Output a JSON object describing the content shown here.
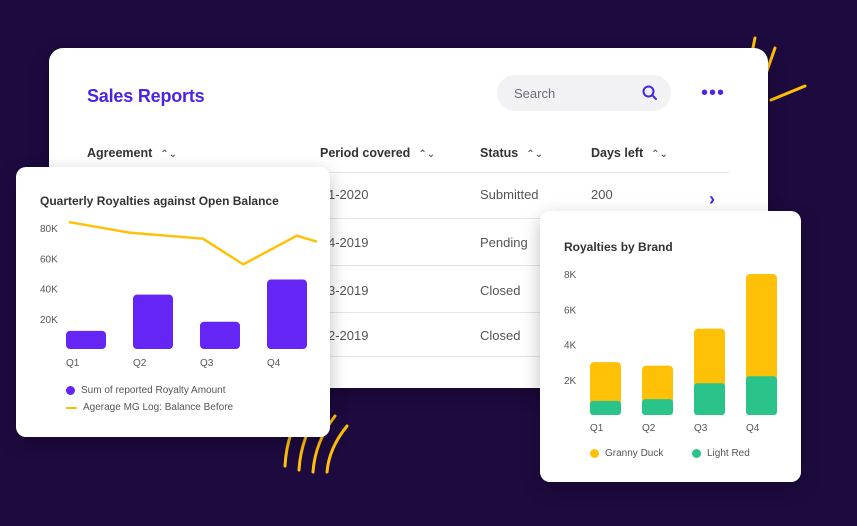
{
  "main": {
    "title": "Sales Reports",
    "search_placeholder": "Search",
    "more": "•••",
    "columns": [
      "Agreement",
      "Period covered",
      "Status",
      "Days left"
    ],
    "rows": [
      {
        "period": "1-2020",
        "status": "Submitted",
        "days": "200"
      },
      {
        "period": "4-2019",
        "status": "Pending",
        "days": ""
      },
      {
        "period": "3-2019",
        "status": "Closed",
        "days": ""
      },
      {
        "period": "2-2019",
        "status": "Closed",
        "days": ""
      }
    ],
    "sort_glyph": "⌃⌄",
    "row_chevron": "›"
  },
  "colors": {
    "accent": "#4a24e6",
    "bar_purple": "#6525f5",
    "line_yellow": "#ffc107",
    "green": "#2ac48b",
    "background": "#1d0a3f"
  },
  "chart_data": [
    {
      "type": "bar",
      "title": "Quarterly Royalties against Open Balance",
      "categories": [
        "Q1",
        "Q2",
        "Q3",
        "Q4"
      ],
      "yticks": [
        "20K",
        "40K",
        "60K",
        "80K"
      ],
      "ylim": [
        0,
        90000
      ],
      "series": [
        {
          "name": "Sum of reported Royalty Amount",
          "kind": "bar",
          "values": [
            12000,
            36000,
            18000,
            46000
          ]
        },
        {
          "name": "Agerage MG Log: Balance Before",
          "kind": "line",
          "values": [
            [
              0,
              84000
            ],
            [
              0.9,
              77000
            ],
            [
              2,
              73000
            ],
            [
              2.6,
              56000
            ],
            [
              3.4,
              75000
            ],
            [
              4,
              71000
            ]
          ]
        }
      ]
    },
    {
      "type": "bar",
      "stacked": true,
      "title": "Royalties by Brand",
      "categories": [
        "Q1",
        "Q2",
        "Q3",
        "Q4"
      ],
      "yticks": [
        "2K",
        "4K",
        "6K",
        "8K"
      ],
      "ylim": [
        0,
        8400
      ],
      "series": [
        {
          "name": "Light Red",
          "values": [
            800,
            900,
            1800,
            2200
          ]
        },
        {
          "name": "Granny Duck",
          "values": [
            2200,
            1900,
            3100,
            5800
          ]
        }
      ]
    }
  ]
}
